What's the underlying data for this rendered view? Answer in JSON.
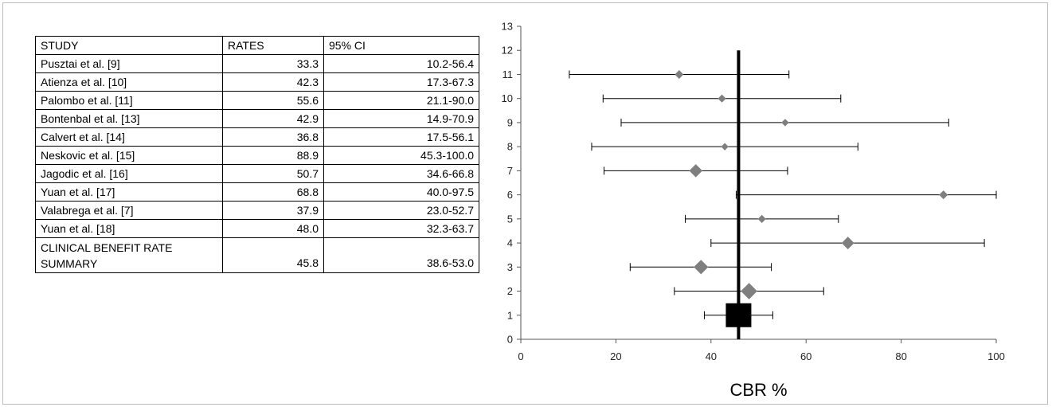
{
  "table": {
    "headers": {
      "study": "STUDY",
      "rates": "RATES",
      "ci": "95% CI"
    },
    "rows": [
      {
        "study": "Pusztai et al. [9]",
        "rate": "33.3",
        "ci": "10.2-56.4"
      },
      {
        "study": "Atienza et al. [10]",
        "rate": "42.3",
        "ci": "17.3-67.3"
      },
      {
        "study": "Palombo et al. [11]",
        "rate": "55.6",
        "ci": "21.1-90.0"
      },
      {
        "study": "Bontenbal et al. [13]",
        "rate": "42.9",
        "ci": "14.9-70.9"
      },
      {
        "study": "Calvert et al. [14]",
        "rate": "36.8",
        "ci": "17.5-56.1"
      },
      {
        "study": "Neskovic et al. [15]",
        "rate": "88.9",
        "ci": "45.3-100.0"
      },
      {
        "study": "Jagodic et al. [16]",
        "rate": "50.7",
        "ci": "34.6-66.8"
      },
      {
        "study": "Yuan et al. [17]",
        "rate": "68.8",
        "ci": "40.0-97.5"
      },
      {
        "study": "Valabrega et al. [7]",
        "rate": "37.9",
        "ci": "23.0-52.7"
      },
      {
        "study": "Yuan et al. [18]",
        "rate": "48.0",
        "ci": "32.3-63.7"
      }
    ],
    "summary": {
      "line1": "CLINICAL BENEFIT RATE",
      "line2": "SUMMARY",
      "rate": "45.8",
      "ci": "38.6-53.0"
    }
  },
  "chart_data": {
    "type": "scatter",
    "xlabel": "CBR %",
    "ylabel": "",
    "xlim": [
      0,
      100
    ],
    "ylim": [
      0,
      13
    ],
    "xticks": [
      0,
      20,
      40,
      60,
      80,
      100
    ],
    "yticks": [
      0,
      1,
      2,
      3,
      4,
      5,
      6,
      7,
      8,
      9,
      10,
      11,
      12,
      13
    ],
    "grid": false,
    "points": [
      {
        "y": 11,
        "x": 33.3,
        "lo": 10.2,
        "hi": 56.4,
        "weight": 1.0
      },
      {
        "y": 10,
        "x": 42.3,
        "lo": 17.3,
        "hi": 67.3,
        "weight": 0.9
      },
      {
        "y": 9,
        "x": 55.6,
        "lo": 21.1,
        "hi": 90.0,
        "weight": 0.8
      },
      {
        "y": 8,
        "x": 42.9,
        "lo": 14.9,
        "hi": 70.9,
        "weight": 0.8
      },
      {
        "y": 7,
        "x": 36.8,
        "lo": 17.5,
        "hi": 56.1,
        "weight": 1.7
      },
      {
        "y": 6,
        "x": 88.9,
        "lo": 45.3,
        "hi": 100.0,
        "weight": 1.0
      },
      {
        "y": 5,
        "x": 50.7,
        "lo": 34.6,
        "hi": 66.8,
        "weight": 0.9
      },
      {
        "y": 4,
        "x": 68.8,
        "lo": 40.0,
        "hi": 97.5,
        "weight": 1.6
      },
      {
        "y": 3,
        "x": 37.9,
        "lo": 23.0,
        "hi": 52.7,
        "weight": 1.9
      },
      {
        "y": 2,
        "x": 48.0,
        "lo": 32.3,
        "hi": 63.7,
        "weight": 2.2
      }
    ],
    "summary": {
      "y": 1,
      "x": 45.8,
      "lo": 38.6,
      "hi": 53.0
    },
    "reference_line": {
      "x": 45.8,
      "y_from": 0,
      "y_to": 12
    },
    "colors": {
      "study_marker": "#7f7f7f",
      "summary_marker": "#000000",
      "lines": "#000000"
    }
  }
}
